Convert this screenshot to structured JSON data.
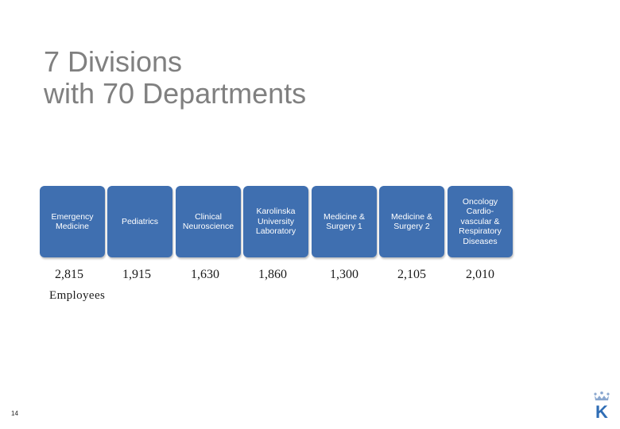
{
  "slide": {
    "title_line1": "7 Divisions",
    "title_line2": "with 70 Departments",
    "page_number": "14",
    "employees_label": "Employees"
  },
  "divisions": [
    {
      "name": "Emergency\nMedicine",
      "employees": "2,815"
    },
    {
      "name": "Pediatrics",
      "employees": "1,915"
    },
    {
      "name": "Clinical\nNeuroscience",
      "employees": "1,630"
    },
    {
      "name": "Karolinska\nUniversity\nLaboratory",
      "employees": "1,860"
    },
    {
      "name": "Medicine &\nSurgery 1",
      "employees": "1,300"
    },
    {
      "name": "Medicine &\nSurgery 2",
      "employees": "2,105"
    },
    {
      "name": "Oncology\nCardio-\nvascular &\nRespiratory\nDiseases",
      "employees": "2,010"
    }
  ],
  "colors": {
    "card_blue": "#3f6fb0",
    "title_gray": "#808080",
    "logo_blue": "#2f6db5"
  },
  "logo": {
    "letter": "K",
    "icon": "crown-k-logo"
  }
}
